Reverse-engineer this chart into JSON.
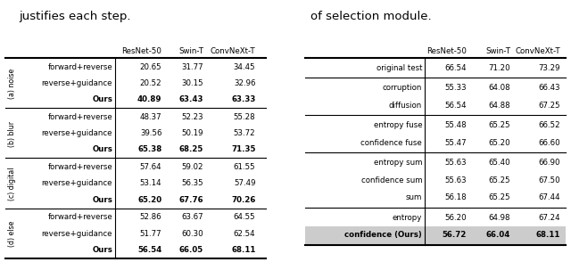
{
  "left_title": "justifies each step.",
  "right_title": "of selection module.",
  "col_headers": [
    "ResNet-50",
    "Swin-T",
    "ConvNeXt-T"
  ],
  "left_table": {
    "groups": [
      {
        "label": "(a) noise",
        "rows": [
          {
            "name": "forward+reverse",
            "vals": [
              "20.65",
              "31.77",
              "34.45"
            ],
            "bold": false
          },
          {
            "name": "reverse+guidance",
            "vals": [
              "20.52",
              "30.15",
              "32.96"
            ],
            "bold": false
          },
          {
            "name": "Ours",
            "vals": [
              "40.89",
              "63.43",
              "63.33"
            ],
            "bold": true
          }
        ]
      },
      {
        "label": "(b) blur",
        "rows": [
          {
            "name": "forward+reverse",
            "vals": [
              "48.37",
              "52.23",
              "55.28"
            ],
            "bold": false
          },
          {
            "name": "reverse+guidance",
            "vals": [
              "39.56",
              "50.19",
              "53.72"
            ],
            "bold": false
          },
          {
            "name": "Ours",
            "vals": [
              "65.38",
              "68.25",
              "71.35"
            ],
            "bold": true
          }
        ]
      },
      {
        "label": "(c) digital",
        "rows": [
          {
            "name": "forward+reverse",
            "vals": [
              "57.64",
              "59.02",
              "61.55"
            ],
            "bold": false
          },
          {
            "name": "reverse+guidance",
            "vals": [
              "53.14",
              "56.35",
              "57.49"
            ],
            "bold": false
          },
          {
            "name": "Ours",
            "vals": [
              "65.20",
              "67.76",
              "70.26"
            ],
            "bold": true
          }
        ]
      },
      {
        "label": "(d) else",
        "rows": [
          {
            "name": "forward+reverse",
            "vals": [
              "52.86",
              "63.67",
              "64.55"
            ],
            "bold": false
          },
          {
            "name": "reverse+guidance",
            "vals": [
              "51.77",
              "60.30",
              "62.54"
            ],
            "bold": false
          },
          {
            "name": "Ours",
            "vals": [
              "56.54",
              "66.05",
              "68.11"
            ],
            "bold": true
          }
        ]
      }
    ]
  },
  "right_table": {
    "groups": [
      {
        "rows": [
          {
            "name": "original test",
            "vals": [
              "66.54",
              "71.20",
              "73.29"
            ],
            "bold": false,
            "shaded": false
          }
        ]
      },
      {
        "rows": [
          {
            "name": "corruption",
            "vals": [
              "55.33",
              "64.08",
              "66.43"
            ],
            "bold": false,
            "shaded": false
          },
          {
            "name": "diffusion",
            "vals": [
              "56.54",
              "64.88",
              "67.25"
            ],
            "bold": false,
            "shaded": false
          }
        ]
      },
      {
        "rows": [
          {
            "name": "entropy fuse",
            "vals": [
              "55.48",
              "65.25",
              "66.52"
            ],
            "bold": false,
            "shaded": false
          },
          {
            "name": "confidence fuse",
            "vals": [
              "55.47",
              "65.20",
              "66.60"
            ],
            "bold": false,
            "shaded": false
          }
        ]
      },
      {
        "rows": [
          {
            "name": "entropy sum",
            "vals": [
              "55.63",
              "65.40",
              "66.90"
            ],
            "bold": false,
            "shaded": false
          },
          {
            "name": "confidence sum",
            "vals": [
              "55.63",
              "65.25",
              "67.50"
            ],
            "bold": false,
            "shaded": false
          },
          {
            "name": "sum",
            "vals": [
              "56.18",
              "65.25",
              "67.44"
            ],
            "bold": false,
            "shaded": false
          }
        ]
      },
      {
        "rows": [
          {
            "name": "entropy",
            "vals": [
              "56.20",
              "64.98",
              "67.24"
            ],
            "bold": false,
            "shaded": false
          },
          {
            "name": "confidence (Ours)",
            "vals": [
              "56.72",
              "66.04",
              "68.11"
            ],
            "bold": true,
            "shaded": true
          }
        ]
      }
    ]
  }
}
